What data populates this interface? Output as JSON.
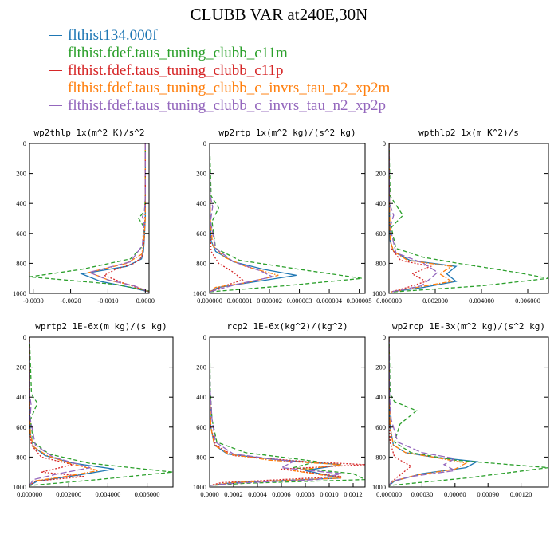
{
  "title": "CLUBB VAR at240E,30N",
  "legend": [
    {
      "label": "flthist134.000f",
      "color": "#1f77b4",
      "dash": "solid"
    },
    {
      "label": "flthist.fdef.taus_tuning_clubb_c11m",
      "color": "#2ca02c",
      "dash": "dashed"
    },
    {
      "label": "flthist.fdef.taus_tuning_clubb_c11p",
      "color": "#d62728",
      "dash": "dotted"
    },
    {
      "label": "flthist.fdef.taus_tuning_clubb_c_invrs_tau_n2_xp2m",
      "color": "#ff7f0e",
      "dash": "dashdot"
    },
    {
      "label": "flthist.fdef.taus_tuning_clubb_c_invrs_tau_n2_xp2p",
      "color": "#9467bd",
      "dash": "longdash"
    }
  ],
  "chart_data": [
    {
      "type": "line",
      "title": "wp2thlp  1x(m^2 K)/s^2",
      "ylim": [
        1000,
        0
      ],
      "xlim": [
        -0.0031,
        0.0001
      ],
      "yticks": [
        "0",
        "200",
        "400",
        "600",
        "800",
        "1000"
      ],
      "xticks": [
        "-0.0030",
        "-0.0020",
        "-0.0010",
        "0.0000"
      ],
      "series": [
        {
          "x": [
            0.0,
            0.0,
            0.0,
            -3e-05,
            -5e-05,
            -0.0001,
            -0.0005,
            -0.0017,
            -0.0012,
            -0.0004,
            0.0001
          ],
          "y": [
            0,
            300,
            500,
            650,
            720,
            770,
            820,
            870,
            920,
            960,
            990
          ]
        },
        {
          "x": [
            0.0,
            0.0,
            -2e-05,
            -0.00018,
            -3e-05,
            -5e-05,
            -0.0004,
            -0.0017,
            -0.0031,
            -0.0008,
            0.0002
          ],
          "y": [
            0,
            350,
            450,
            500,
            560,
            680,
            770,
            840,
            890,
            940,
            990
          ]
        },
        {
          "x": [
            0.0,
            0.0,
            -2e-05,
            -5e-05,
            -0.0001,
            -0.0003,
            -0.0008,
            -0.0011,
            -0.0006,
            0.0001
          ],
          "y": [
            0,
            400,
            600,
            700,
            760,
            800,
            840,
            880,
            930,
            990
          ]
        },
        {
          "x": [
            0.0,
            0.0,
            0.0,
            -5e-05,
            -0.0001,
            -0.0005,
            -0.0015,
            -0.001,
            -0.0003,
            0.0001
          ],
          "y": [
            0,
            300,
            500,
            680,
            740,
            800,
            860,
            910,
            950,
            990
          ]
        },
        {
          "x": [
            0.0,
            0.0,
            -2e-05,
            -8e-05,
            -3e-05,
            -8e-05,
            -0.0004,
            -0.0015,
            -0.001,
            -0.0003,
            0.0001
          ],
          "y": [
            0,
            350,
            450,
            490,
            520,
            680,
            790,
            860,
            910,
            950,
            990
          ]
        }
      ]
    },
    {
      "type": "line",
      "title": "wp2rtp  1x(m^2 kg)/(s^2 kg)",
      "ylim": [
        1000,
        0
      ],
      "xlim": [
        0.0,
        5.2e-06
      ],
      "yticks": [
        "0",
        "200",
        "400",
        "600",
        "800",
        "1000"
      ],
      "xticks": [
        "0.000000",
        "0.000001",
        "0.000002",
        "0.000003",
        "0.000004",
        "0.000005"
      ],
      "series": [
        {
          "x": [
            0.0,
            2e-08,
            5e-08,
            2e-07,
            8e-07,
            1.8e-06,
            2.9e-06,
            1.6e-06,
            3e-07,
            0.0
          ],
          "y": [
            0,
            500,
            650,
            720,
            790,
            840,
            880,
            920,
            960,
            990
          ]
        },
        {
          "x": [
            0.0,
            5e-08,
            3e-07,
            8e-08,
            2e-07,
            1e-06,
            3e-06,
            5.1e-06,
            2.5e-06,
            0.0
          ],
          "y": [
            0,
            350,
            430,
            520,
            700,
            780,
            840,
            900,
            950,
            990
          ]
        },
        {
          "x": [
            0.0,
            2e-08,
            5e-08,
            3e-07,
            8e-07,
            1.1e-06,
            5e-07,
            0.0
          ],
          "y": [
            0,
            600,
            720,
            800,
            860,
            910,
            950,
            990
          ]
        },
        {
          "x": [
            0.0,
            2e-08,
            1e-07,
            5e-07,
            1.2e-06,
            2.3e-06,
            1.2e-06,
            2e-07,
            0.0
          ],
          "y": [
            0,
            500,
            680,
            760,
            820,
            880,
            930,
            960,
            990
          ]
        },
        {
          "x": [
            0.0,
            2e-08,
            1e-07,
            3e-08,
            2e-07,
            8e-07,
            1.7e-06,
            2.1e-06,
            9e-07,
            0.0
          ],
          "y": [
            0,
            350,
            420,
            520,
            700,
            790,
            850,
            890,
            940,
            990
          ]
        }
      ]
    },
    {
      "type": "line",
      "title": "wpthlp2  1x(m K^2)/s",
      "ylim": [
        1000,
        0
      ],
      "xlim": [
        0.0,
        0.0069
      ],
      "yticks": [
        "0",
        "200",
        "400",
        "600",
        "800",
        "1000"
      ],
      "xticks": [
        "0.000000",
        "0.002000",
        "0.004000",
        "0.006000"
      ],
      "series": [
        {
          "x": [
            0.0,
            2e-05,
            5e-05,
            0.0002,
            0.0009,
            0.0029,
            0.0025,
            0.0029,
            0.0015,
            0.0001
          ],
          "y": [
            0,
            450,
            650,
            720,
            780,
            820,
            870,
            920,
            960,
            990
          ]
        },
        {
          "x": [
            0.0,
            5e-05,
            0.0006,
            0.0001,
            0.0003,
            0.0015,
            0.003,
            0.0055,
            0.0069,
            0.004,
            0.0002
          ],
          "y": [
            0,
            350,
            480,
            560,
            700,
            760,
            800,
            860,
            900,
            950,
            990
          ]
        },
        {
          "x": [
            0.0,
            2e-05,
            0.0001,
            0.0005,
            0.0018,
            0.001,
            0.0016,
            0.0008,
            0.0001
          ],
          "y": [
            0,
            500,
            700,
            780,
            820,
            870,
            920,
            960,
            990
          ]
        },
        {
          "x": [
            0.0,
            2e-05,
            6e-05,
            0.0002,
            0.0008,
            0.0027,
            0.0022,
            0.0027,
            0.0012,
            0.0001
          ],
          "y": [
            0,
            450,
            650,
            720,
            780,
            820,
            870,
            920,
            960,
            990
          ]
        },
        {
          "x": [
            0.0,
            2e-05,
            0.0002,
            5e-05,
            0.0003,
            0.0015,
            0.0021,
            0.0018,
            0.0014,
            0.0001
          ],
          "y": [
            0,
            400,
            480,
            560,
            730,
            800,
            860,
            900,
            950,
            990
          ]
        }
      ]
    },
    {
      "type": "line",
      "title": "wprtp2  1E-6x(m kg)/(s kg)",
      "ylim": [
        1000,
        0
      ],
      "xlim": [
        0.0,
        0.0073
      ],
      "yticks": [
        "0",
        "200",
        "400",
        "600",
        "800",
        "1000"
      ],
      "xticks": [
        "0.000000",
        "0.002000",
        "0.004000",
        "0.006000"
      ],
      "series": [
        {
          "x": [
            0.0,
            1e-05,
            5e-05,
            0.0002,
            0.0008,
            0.0022,
            0.0043,
            0.0025,
            0.0004,
            0.0
          ],
          "y": [
            0,
            500,
            650,
            730,
            790,
            840,
            880,
            920,
            960,
            990
          ]
        },
        {
          "x": [
            0.0,
            0.0001,
            0.0004,
            5e-05,
            0.0002,
            0.001,
            0.003,
            0.0073,
            0.0035,
            0.0
          ],
          "y": [
            0,
            380,
            440,
            550,
            700,
            780,
            840,
            900,
            950,
            990
          ]
        },
        {
          "x": [
            0.0,
            1e-05,
            0.0001,
            0.0006,
            0.0022,
            0.0006,
            0.0028,
            0.0003,
            0.0
          ],
          "y": [
            0,
            600,
            720,
            800,
            850,
            900,
            930,
            960,
            990
          ]
        },
        {
          "x": [
            0.0,
            1e-05,
            5e-05,
            0.0002,
            0.0009,
            0.002,
            0.0035,
            0.0018,
            0.0002,
            0.0
          ],
          "y": [
            0,
            500,
            650,
            730,
            790,
            840,
            890,
            930,
            960,
            990
          ]
        },
        {
          "x": [
            0.0,
            1e-05,
            8e-05,
            3e-05,
            0.0003,
            0.0012,
            0.0031,
            0.0015,
            0.0002,
            0.0
          ],
          "y": [
            0,
            380,
            450,
            540,
            720,
            800,
            870,
            910,
            950,
            990
          ]
        }
      ]
    },
    {
      "type": "line",
      "title": "rcp2  1E-6x(kg^2)/(kg^2)",
      "ylim": [
        1000,
        0
      ],
      "xlim": [
        0.0,
        0.0013
      ],
      "yticks": [
        "0",
        "200",
        "400",
        "600",
        "800",
        "1000"
      ],
      "xticks": [
        "0.0000",
        "0.0002",
        "0.0004",
        "0.0006",
        "0.0008",
        "0.0010",
        "0.0012"
      ],
      "series": [
        {
          "x": [
            0.0,
            3e-06,
            1e-05,
            4e-05,
            0.00015,
            0.0006,
            0.0011,
            0.0008,
            0.0011,
            0.0002,
            0.0
          ],
          "y": [
            0,
            400,
            600,
            720,
            780,
            820,
            850,
            890,
            940,
            970,
            990
          ]
        },
        {
          "x": [
            0.0,
            5e-06,
            2e-05,
            6e-05,
            0.0003,
            0.0009,
            0.0007,
            0.0012,
            0.0013,
            0.0003,
            0.0
          ],
          "y": [
            0,
            350,
            550,
            700,
            770,
            830,
            870,
            910,
            950,
            975,
            990
          ]
        },
        {
          "x": [
            0.0,
            2e-06,
            1e-05,
            5e-05,
            0.0002,
            0.0008,
            0.0013,
            0.0006,
            0.0011,
            0.0001,
            0.0
          ],
          "y": [
            0,
            400,
            600,
            720,
            790,
            830,
            850,
            880,
            930,
            970,
            990
          ]
        },
        {
          "x": [
            0.0,
            3e-06,
            1e-05,
            4e-05,
            0.00016,
            0.0005,
            0.0011,
            0.0007,
            0.0011,
            0.0002,
            0.0
          ],
          "y": [
            0,
            400,
            600,
            720,
            780,
            820,
            850,
            890,
            940,
            970,
            990
          ]
        },
        {
          "x": [
            0.0,
            4e-06,
            2e-05,
            5e-05,
            0.0002,
            0.0007,
            0.0006,
            0.0011,
            0.0009,
            0.0002,
            0.0
          ],
          "y": [
            0,
            350,
            550,
            700,
            780,
            830,
            870,
            910,
            950,
            975,
            990
          ]
        }
      ]
    },
    {
      "type": "line",
      "title": "wp2rcp  1E-3x(m^2 kg)/(s^2 kg)",
      "ylim": [
        1000,
        0
      ],
      "xlim": [
        0.0,
        0.00145
      ],
      "yticks": [
        "0",
        "200",
        "400",
        "600",
        "800",
        "1000"
      ],
      "xticks": [
        "0.000000",
        "0.00030",
        "0.00060",
        "0.00090",
        "0.00120"
      ],
      "series": [
        {
          "x": [
            0.0,
            2e-06,
            1e-05,
            4e-05,
            0.00015,
            0.0004,
            0.0008,
            0.0007,
            0.0003,
            5e-05,
            0.0
          ],
          "y": [
            0,
            400,
            600,
            720,
            770,
            800,
            830,
            870,
            910,
            960,
            990
          ]
        },
        {
          "x": [
            0.0,
            1e-05,
            5e-05,
            0.00025,
            0.0001,
            5e-05,
            0.0002,
            0.0006,
            0.0011,
            0.00145,
            0.0007,
            0.0
          ],
          "y": [
            0,
            380,
            430,
            490,
            580,
            700,
            770,
            820,
            850,
            870,
            940,
            990
          ]
        },
        {
          "x": [
            0.0,
            2e-06,
            1e-05,
            5e-05,
            0.0002,
            0.0001,
            3e-05,
            0.0
          ],
          "y": [
            0,
            500,
            700,
            800,
            860,
            920,
            960,
            990
          ]
        },
        {
          "x": [
            0.0,
            2e-06,
            1e-05,
            4e-05,
            0.00015,
            0.0004,
            0.0007,
            0.0006,
            0.00025,
            4e-05,
            0.0
          ],
          "y": [
            0,
            400,
            600,
            720,
            770,
            800,
            840,
            880,
            920,
            960,
            990
          ]
        },
        {
          "x": [
            0.0,
            5e-06,
            2e-05,
            8e-05,
            0.0003,
            0.0006,
            0.0005,
            0.0006,
            0.0002,
            3e-05,
            0.0
          ],
          "y": [
            0,
            400,
            550,
            700,
            770,
            810,
            850,
            890,
            930,
            960,
            990
          ]
        }
      ]
    }
  ]
}
